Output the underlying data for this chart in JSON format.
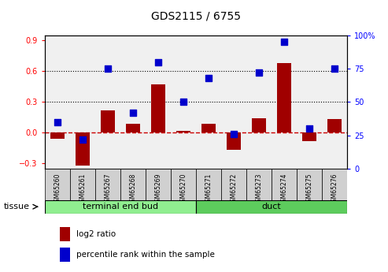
{
  "title": "GDS2115 / 6755",
  "samples": [
    "GSM65260",
    "GSM65261",
    "GSM65267",
    "GSM65268",
    "GSM65269",
    "GSM65270",
    "GSM65271",
    "GSM65272",
    "GSM65273",
    "GSM65274",
    "GSM65275",
    "GSM65276"
  ],
  "log2_ratio": [
    -0.06,
    -0.32,
    0.22,
    0.09,
    0.47,
    0.02,
    0.09,
    -0.17,
    0.14,
    0.68,
    -0.08,
    0.13
  ],
  "percentile_rank": [
    35,
    22,
    75,
    42,
    80,
    50,
    68,
    26,
    72,
    95,
    30,
    75
  ],
  "tissue_groups": [
    {
      "label": "terminal end bud",
      "start": 0,
      "end": 5,
      "color": "#90ee90"
    },
    {
      "label": "duct",
      "start": 6,
      "end": 11,
      "color": "#5dcc5d"
    }
  ],
  "ylim_left": [
    -0.35,
    0.95
  ],
  "ylim_right": [
    0,
    100
  ],
  "yticks_left": [
    -0.3,
    0.0,
    0.3,
    0.6,
    0.9
  ],
  "yticks_right": [
    0,
    25,
    50,
    75,
    100
  ],
  "ytick_labels_right": [
    "0",
    "25",
    "50",
    "75",
    "100%"
  ],
  "hlines": [
    0.3,
    0.6
  ],
  "bar_color": "#a00000",
  "dot_color": "#0000cc",
  "zero_line_color": "#cc0000",
  "zero_line_style": "--",
  "hline_style": ":",
  "hline_color": "black",
  "plot_bg_color": "#f0f0f0",
  "legend_log2_label": "log2 ratio",
  "legend_pct_label": "percentile rank within the sample",
  "tissue_label": "tissue",
  "bar_width": 0.55,
  "dot_size": 28,
  "tick_bg_color": "#d0d0d0"
}
